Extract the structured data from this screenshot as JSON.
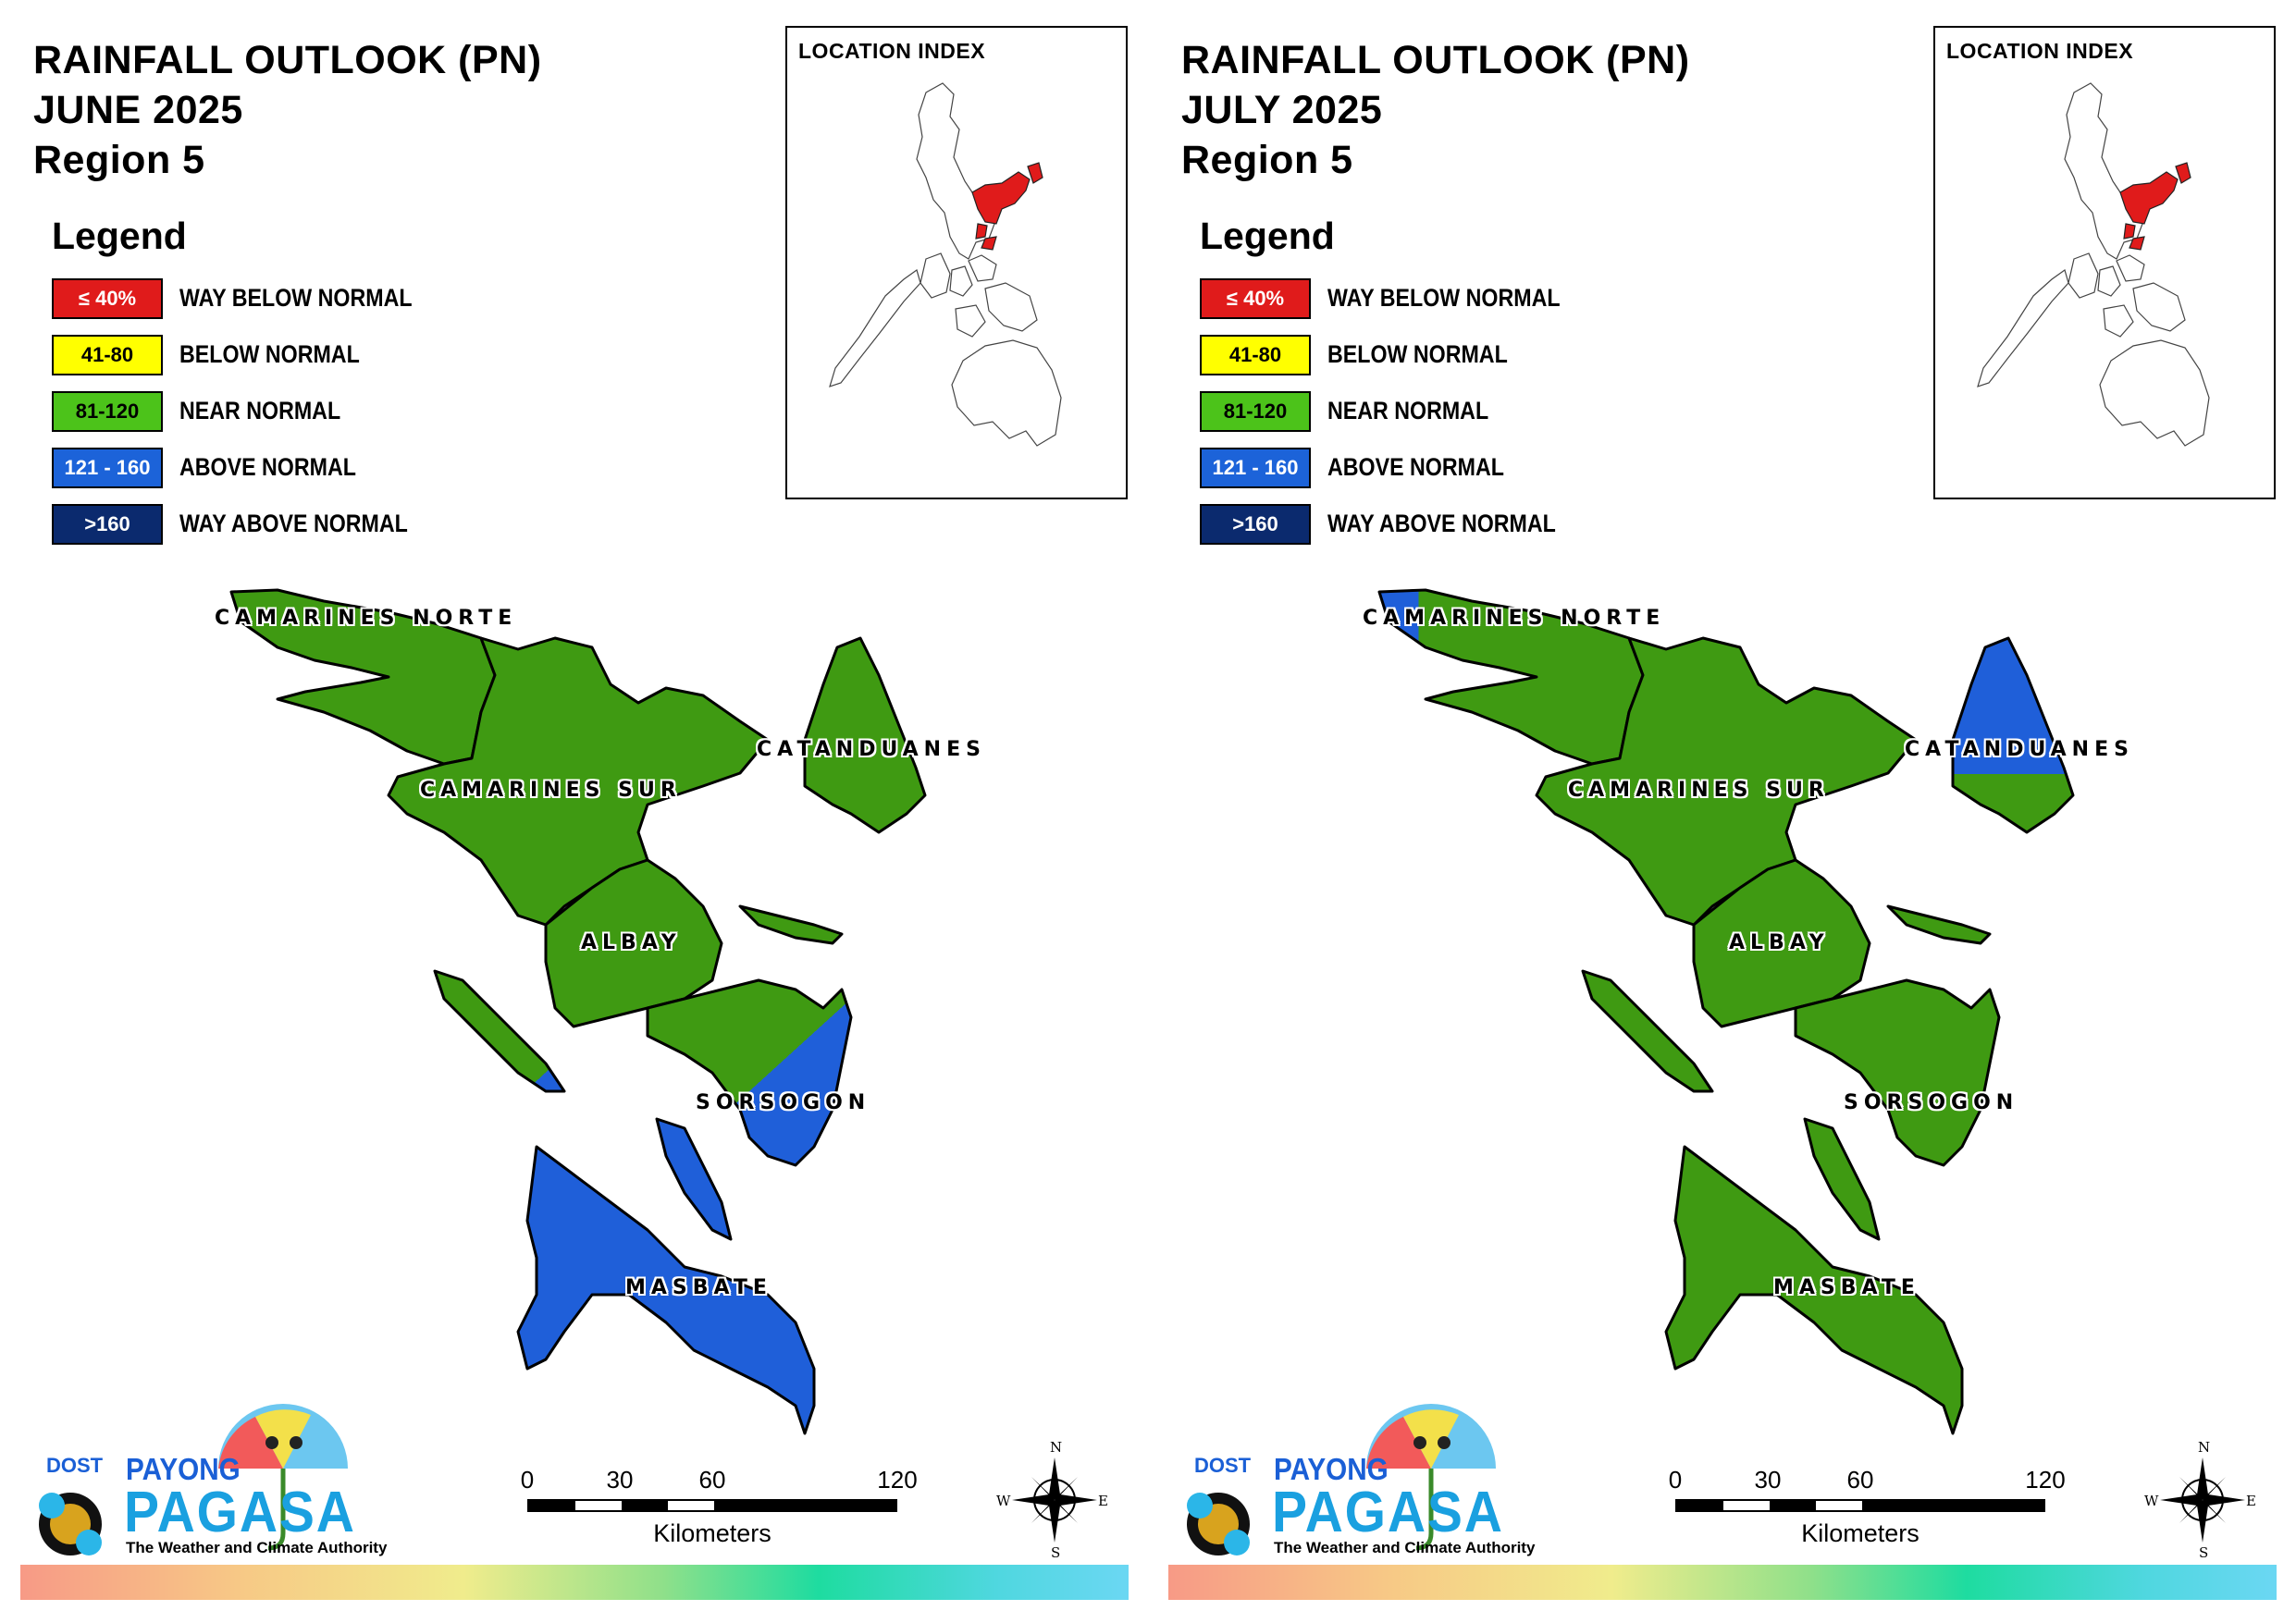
{
  "panels": [
    {
      "id": "june",
      "title": {
        "line1": "RAINFALL OUTLOOK (PN)",
        "line2": "JUNE 2025",
        "line3": "Region 5"
      },
      "inset_title": "LOCATION INDEX",
      "province_outlook": {
        "CAMARINES NORTE": "NEAR NORMAL",
        "CAMARINES SUR": "NEAR NORMAL",
        "CATANDUANES": "NEAR NORMAL",
        "ALBAY": "NEAR NORMAL",
        "SORSOGON": "NEAR NORMAL / ABOVE NORMAL (south-east)",
        "MASBATE": "ABOVE NORMAL"
      }
    },
    {
      "id": "july",
      "title": {
        "line1": "RAINFALL OUTLOOK (PN)",
        "line2": "JULY 2025",
        "line3": "Region 5"
      },
      "inset_title": "LOCATION INDEX",
      "province_outlook": {
        "CAMARINES NORTE": "NEAR NORMAL / ABOVE NORMAL (north-west tip)",
        "CAMARINES SUR": "NEAR NORMAL",
        "CATANDUANES": "ABOVE NORMAL / NEAR NORMAL (south)",
        "ALBAY": "NEAR NORMAL",
        "SORSOGON": "NEAR NORMAL",
        "MASBATE": "NEAR NORMAL"
      }
    }
  ],
  "legend": {
    "title": "Legend",
    "items": [
      {
        "range": "≤ 40%",
        "label": "WAY BELOW NORMAL",
        "color": "#e01b1b",
        "text_color": "#ffffff"
      },
      {
        "range": "41-80",
        "label": "BELOW NORMAL",
        "color": "#ffff00",
        "text_color": "#000000"
      },
      {
        "range": "81-120",
        "label": "NEAR NORMAL",
        "color": "#4cc31a",
        "text_color": "#000000"
      },
      {
        "range": "121 - 160",
        "label": "ABOVE NORMAL",
        "color": "#1c63d9",
        "text_color": "#ffffff"
      },
      {
        "range": ">160",
        "label": "WAY ABOVE NORMAL",
        "color": "#0b2a6e",
        "text_color": "#ffffff"
      }
    ]
  },
  "map_colors": {
    "near_normal": "#3f9a12",
    "above_normal": "#1f5fd9",
    "highlight": "#e01b1b"
  },
  "province_labels": [
    "CAMARINES NORTE",
    "CAMARINES SUR",
    "CATANDUANES",
    "ALBAY",
    "SORSOGON",
    "MASBATE"
  ],
  "scale": {
    "ticks": [
      "0",
      "30",
      "60",
      "120"
    ],
    "unit": "Kilometers"
  },
  "compass": {
    "n": "N",
    "e": "E",
    "s": "S",
    "w": "W"
  },
  "logo": {
    "dost": "DOST",
    "payong": "PAYONG",
    "pagasa": "PAGASA",
    "tagline": "The Weather and Climate Authority"
  }
}
